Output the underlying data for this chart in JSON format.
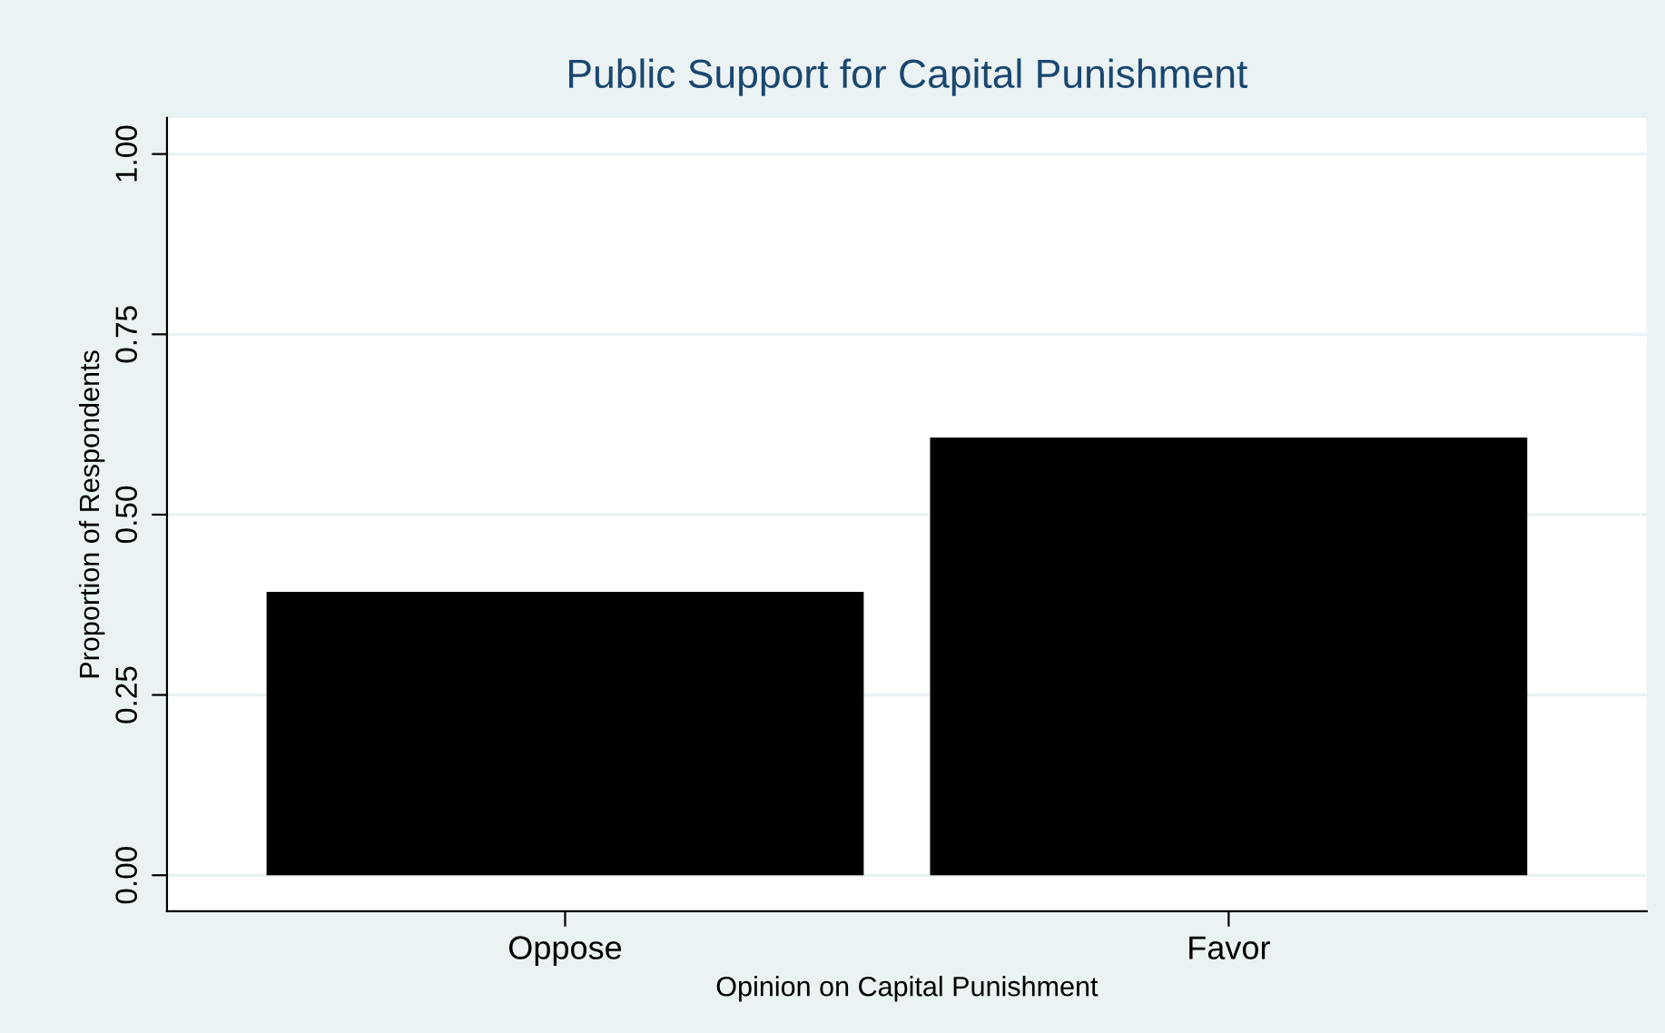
{
  "chart_data": {
    "type": "bar",
    "title": "Public Support for Capital Punishment",
    "xlabel": "Opinion on Capital Punishment",
    "ylabel": "Proportion of Respondents",
    "categories": [
      "Oppose",
      "Favor"
    ],
    "values": [
      0.393,
      0.607
    ],
    "color": "#000000",
    "ylim": [
      -0.05,
      1.05
    ],
    "yticks": [
      {
        "value": 0,
        "label": "0.00"
      },
      {
        "value": 0.25,
        "label": "0.25"
      },
      {
        "value": 0.5,
        "label": "0.50"
      },
      {
        "value": 0.75,
        "label": "0.75"
      },
      {
        "value": 1,
        "label": "1.00"
      }
    ],
    "grid": "y",
    "legend": false
  }
}
